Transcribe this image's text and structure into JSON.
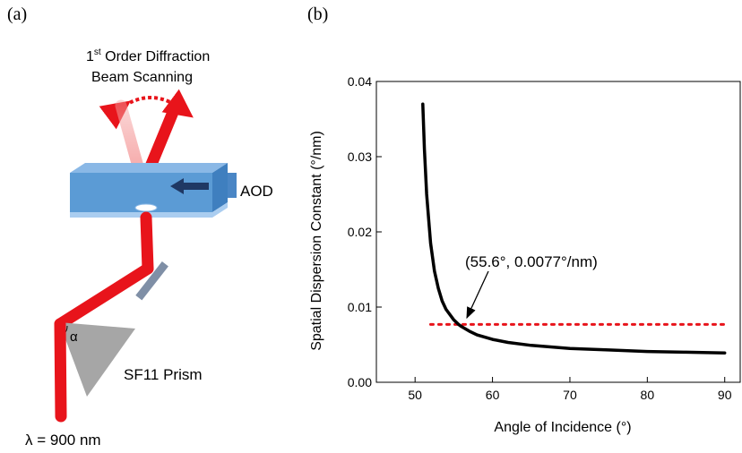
{
  "panel_a": {
    "label": "(a)",
    "beam_caption_prefix": "1",
    "beam_caption_sup": "st",
    "beam_caption_rest": " Order Diffraction",
    "beam_caption_line2": "Beam Scanning",
    "aod_label": "AOD",
    "prism_label": "SF11 Prism",
    "alpha_label": "α",
    "wavelength_label": "λ = 900 nm",
    "colors": {
      "beam": "#e8141b",
      "beam_faded": "#f5a3a3",
      "aod_front": "#5b9bd5",
      "aod_top": "#8ab8e6",
      "aod_side": "#3f7fbf",
      "arrow": "#1f3864",
      "mirror": "#7f8fa6",
      "prism": "#a6a6a6"
    }
  },
  "panel_b": {
    "label": "(b)",
    "annotation": "(55.6°, 0.0077°/nm)",
    "chart_data": {
      "type": "line",
      "xlabel": "Angle of Incidence (°)",
      "ylabel": "Spatial Dispersion Constant (°/nm)",
      "xlim": [
        45,
        92
      ],
      "ylim": [
        0,
        0.04
      ],
      "x_ticks": [
        50,
        60,
        70,
        80,
        90
      ],
      "y_ticks": [
        0.0,
        0.01,
        0.02,
        0.03,
        0.04
      ],
      "x_tick_labels": [
        "50",
        "60",
        "70",
        "80",
        "90"
      ],
      "y_tick_labels": [
        "0.00",
        "0.01",
        "0.02",
        "0.03",
        "0.04"
      ],
      "grid": false,
      "series": [
        {
          "x": [
            51.0,
            51.2,
            51.5,
            52.0,
            52.5,
            53.0,
            53.5,
            54.0,
            55.0,
            55.6,
            56.0,
            57.0,
            58.0,
            60.0,
            62.0,
            65.0,
            70.0,
            75.0,
            80.0,
            85.0,
            90.0
          ],
          "y": [
            0.037,
            0.031,
            0.025,
            0.0185,
            0.0148,
            0.0125,
            0.0108,
            0.0097,
            0.0083,
            0.0077,
            0.0074,
            0.0068,
            0.0063,
            0.0057,
            0.0053,
            0.0049,
            0.0045,
            0.0043,
            0.0041,
            0.004,
            0.0039
          ],
          "color": "#000000",
          "style": "solid"
        }
      ],
      "reference_line": {
        "y": 0.0077,
        "x_range": [
          52,
          90
        ],
        "color": "#e8141b",
        "style": "dotted"
      },
      "annotation_point": {
        "x": 55.6,
        "y": 0.0077
      }
    }
  }
}
